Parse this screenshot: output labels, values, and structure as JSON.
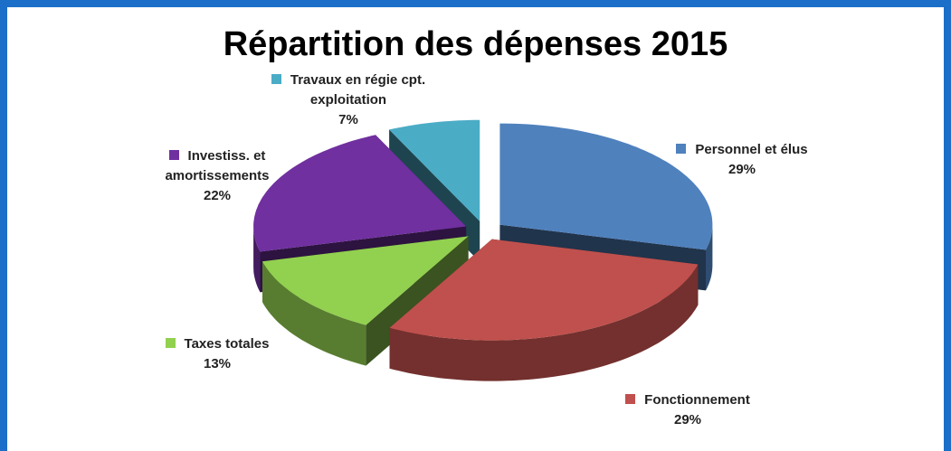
{
  "chart_data": {
    "type": "pie",
    "title": "Répartition des dépenses 2015",
    "categories": [
      "Personnel et élus",
      "Fonctionnement",
      "Taxes totales",
      "Investiss. et amortissements",
      "Travaux en régie cpt. exploitation"
    ],
    "values": [
      29,
      29,
      13,
      22,
      7
    ],
    "value_labels": [
      "29%",
      "29%",
      "13%",
      "22%",
      "7%"
    ],
    "colors": [
      "#4f81bd",
      "#c0504d",
      "#92d050",
      "#7030a0",
      "#4bacc6"
    ]
  }
}
